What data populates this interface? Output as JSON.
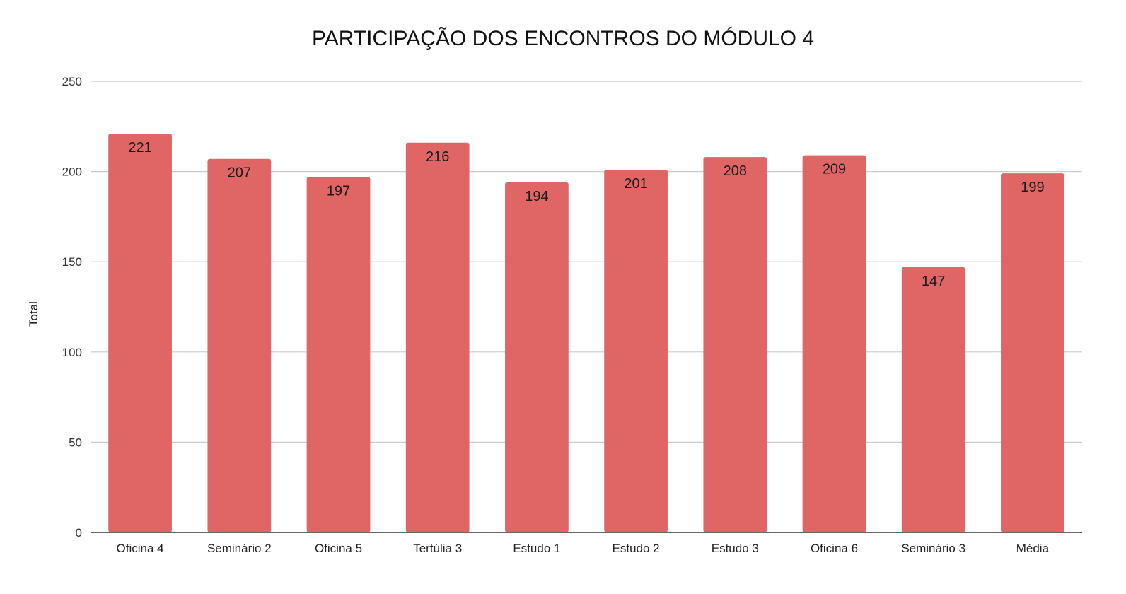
{
  "chart_data": {
    "type": "bar",
    "title": "PARTICIPAÇÃO DOS ENCONTROS DO MÓDULO 4",
    "xlabel": "",
    "ylabel": "Total",
    "categories": [
      "Oficina 4",
      "Seminário 2",
      "Oficina 5",
      "Tertúlia 3",
      "Estudo 1",
      "Estudo 2",
      "Estudo 3",
      "Oficina 6",
      "Seminário 3",
      "Média"
    ],
    "values": [
      221,
      207,
      197,
      216,
      194,
      201,
      208,
      209,
      147,
      199
    ],
    "ylim": [
      0,
      250
    ],
    "yticks": [
      0,
      50,
      100,
      150,
      200,
      250
    ],
    "grid": true,
    "data_labels": true,
    "bar_color": "#e06666",
    "legend": "none"
  }
}
